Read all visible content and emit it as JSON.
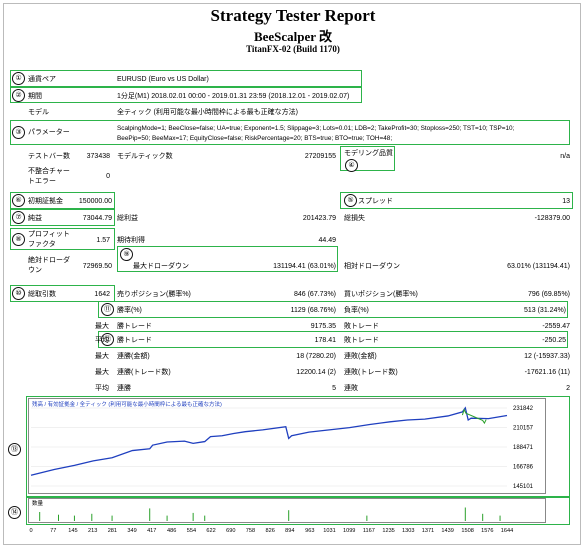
{
  "report": {
    "title": "Strategy Tester Report",
    "ea_name": "BeeScalper 改",
    "server": "TitanFX-02 (Build 1170)"
  },
  "markers": [
    "①",
    "②",
    "③",
    "④",
    "⑤",
    "⑥",
    "⑦",
    "⑧",
    "⑨",
    "⑩",
    "⑪",
    "⑫",
    "⑬",
    "⑭"
  ],
  "rows": {
    "pair_label": "通貨ペア",
    "pair_value": "EURUSD (Euro vs US Dollar)",
    "period_label": "期間",
    "period_value": "1分足(M1) 2018.02.01 00:00 - 2019.01.31 23:59 (2018.12.01 - 2019.02.07)",
    "model_label": "モデル",
    "model_value": "全ティック (利用可能な最小時間枠による最も正確な方法)",
    "params_label": "パラメーター",
    "params_value_1": "ScalpingMode=1; BeeClose=false; UA=true; Exponent=1.5; Slippage=3; Lots=0.01; LDB=2; TakeProfit=30; Stoploss=250; TST=10; TSP=10;",
    "params_value_2": "BeePip=50; BeeMax=17; EquityClose=false; RiskPercentage=20; BTS=true; BTO=true; TOH=48;",
    "bars_label": "テストバー数",
    "bars_value": "373438",
    "ticks_label": "モデルティック数",
    "ticks_value": "27209155",
    "quality_label": "モデリング品質",
    "quality_value": "n/a",
    "mismatch_label_1": "不整合チャー",
    "mismatch_label_2": "トエラー",
    "mismatch_value": "0",
    "deposit_label": "初期証拠金",
    "deposit_value": "150000.00",
    "spread_label": "スプレッド",
    "spread_value": "13",
    "net_label": "純益",
    "net_value": "73044.79",
    "gross_profit_label": "総利益",
    "gross_profit_value": "201423.79",
    "gross_loss_label": "総損失",
    "gross_loss_value": "-128379.00",
    "pf_label_1": "プロフィット",
    "pf_label_2": "ファクタ",
    "pf_value": "1.57",
    "expected_label": "期待利得",
    "expected_value": "44.49",
    "abs_dd_label_1": "絶対ドローダ",
    "abs_dd_label_2": "ウン",
    "abs_dd_value": "72969.50",
    "max_dd_label": "最大ドローダウン",
    "max_dd_value": "131194.41 (63.01%)",
    "rel_dd_label": "相対ドローダウン",
    "rel_dd_value": "63.01% (131194.41)",
    "total_trades_label": "総取引数",
    "total_trades_value": "1642",
    "short_label": "売りポジション(勝率%)",
    "short_value": "846 (67.73%)",
    "long_label": "買いポジション(勝率%)",
    "long_value": "796 (69.85%)",
    "win_rate_label": "勝率(%)",
    "win_rate_value": "1129 (68.76%)",
    "loss_rate_label": "負率(%)",
    "loss_rate_value": "513 (31.24%)",
    "max_label": "最大",
    "max_win_label": "勝トレード",
    "max_win_value": "9175.35",
    "max_loss_label": "敗トレード",
    "max_loss_value": "-2559.47",
    "avg_label": "平均",
    "avg_win_label": "勝トレード",
    "avg_win_value": "178.41",
    "avg_loss_label": "敗トレード",
    "avg_loss_value": "-250.25",
    "cons_label": "最大",
    "cons_wins_label": "連勝(金額)",
    "cons_wins_value": "18 (7280.20)",
    "cons_losses_label": "連敗(金額)",
    "cons_losses_value": "12 (-15937.33)",
    "cons2_label": "最大",
    "cons_profit_label": "連勝(トレード数)",
    "cons_profit_value": "12200.14 (2)",
    "cons_loss_label": "連敗(トレード数)",
    "cons_loss_value": "-17621.16 (11)",
    "avg_cons_label": "平均",
    "avg_cons_wins_label": "連勝",
    "avg_cons_wins_value": "5",
    "avg_cons_losses_label": "連敗",
    "avg_cons_losses_value": "2"
  },
  "chart_data": {
    "type": "line",
    "legend": "残高 / 有効証拠金 / 全ティック (利用可能な最小時間枠による最も正確な方法)",
    "y_ticks": [
      "231842",
      "210157",
      "188471",
      "166786",
      "145101"
    ],
    "x_ticks": [
      "0",
      "77",
      "145",
      "213",
      "281",
      "349",
      "417",
      "486",
      "554",
      "622",
      "690",
      "758",
      "826",
      "894",
      "963",
      "1031",
      "1099",
      "1167",
      "1235",
      "1303",
      "1371",
      "1439",
      "1508",
      "1576",
      "1644"
    ],
    "ylim": [
      145101,
      231842
    ],
    "xlim": [
      0,
      1644
    ],
    "series": [
      {
        "color": "#1f3fbf",
        "x": [
          0,
          80,
          150,
          215,
          280,
          350,
          410,
          420,
          470,
          530,
          560,
          600,
          620,
          660,
          700,
          740,
          800,
          880,
          890,
          900,
          960,
          1030,
          1100,
          1170,
          1240,
          1300,
          1360,
          1440,
          1490,
          1500,
          1510,
          1520,
          1580,
          1644
        ],
        "y": [
          157000,
          163500,
          168000,
          173000,
          176500,
          184500,
          186500,
          190500,
          194000,
          195000,
          192500,
          194500,
          200000,
          201000,
          203500,
          205500,
          207500,
          211000,
          198000,
          201000,
          205000,
          207500,
          210000,
          213500,
          216500,
          218500,
          219500,
          223000,
          227500,
          232000,
          218500,
          220500,
          220000,
          223500
        ]
      },
      {
        "color": "#2aa02a",
        "x": [
          1490,
          1496,
          1502,
          1560,
          1566,
          1572
        ],
        "y": [
          224000,
          230000,
          226000,
          218000,
          215000,
          219000
        ]
      }
    ],
    "volume_label": "数量",
    "volume_ticks": [
      "0",
      "77",
      "145",
      "213",
      "281",
      "349",
      "417",
      "486",
      "554",
      "622",
      "690",
      "758",
      "826",
      "894",
      "963",
      "1031",
      "1099",
      "1167",
      "1235",
      "1303",
      "1371",
      "1439",
      "1508",
      "1576",
      "1644"
    ],
    "volume_spikes": [
      {
        "x": 30,
        "v": 0.5
      },
      {
        "x": 95,
        "v": 0.35
      },
      {
        "x": 150,
        "v": 0.3
      },
      {
        "x": 210,
        "v": 0.4
      },
      {
        "x": 280,
        "v": 0.3
      },
      {
        "x": 410,
        "v": 0.7
      },
      {
        "x": 470,
        "v": 0.3
      },
      {
        "x": 560,
        "v": 0.45
      },
      {
        "x": 600,
        "v": 0.3
      },
      {
        "x": 890,
        "v": 0.6
      },
      {
        "x": 1160,
        "v": 0.3
      },
      {
        "x": 1500,
        "v": 0.75
      },
      {
        "x": 1560,
        "v": 0.4
      },
      {
        "x": 1620,
        "v": 0.3
      }
    ]
  }
}
